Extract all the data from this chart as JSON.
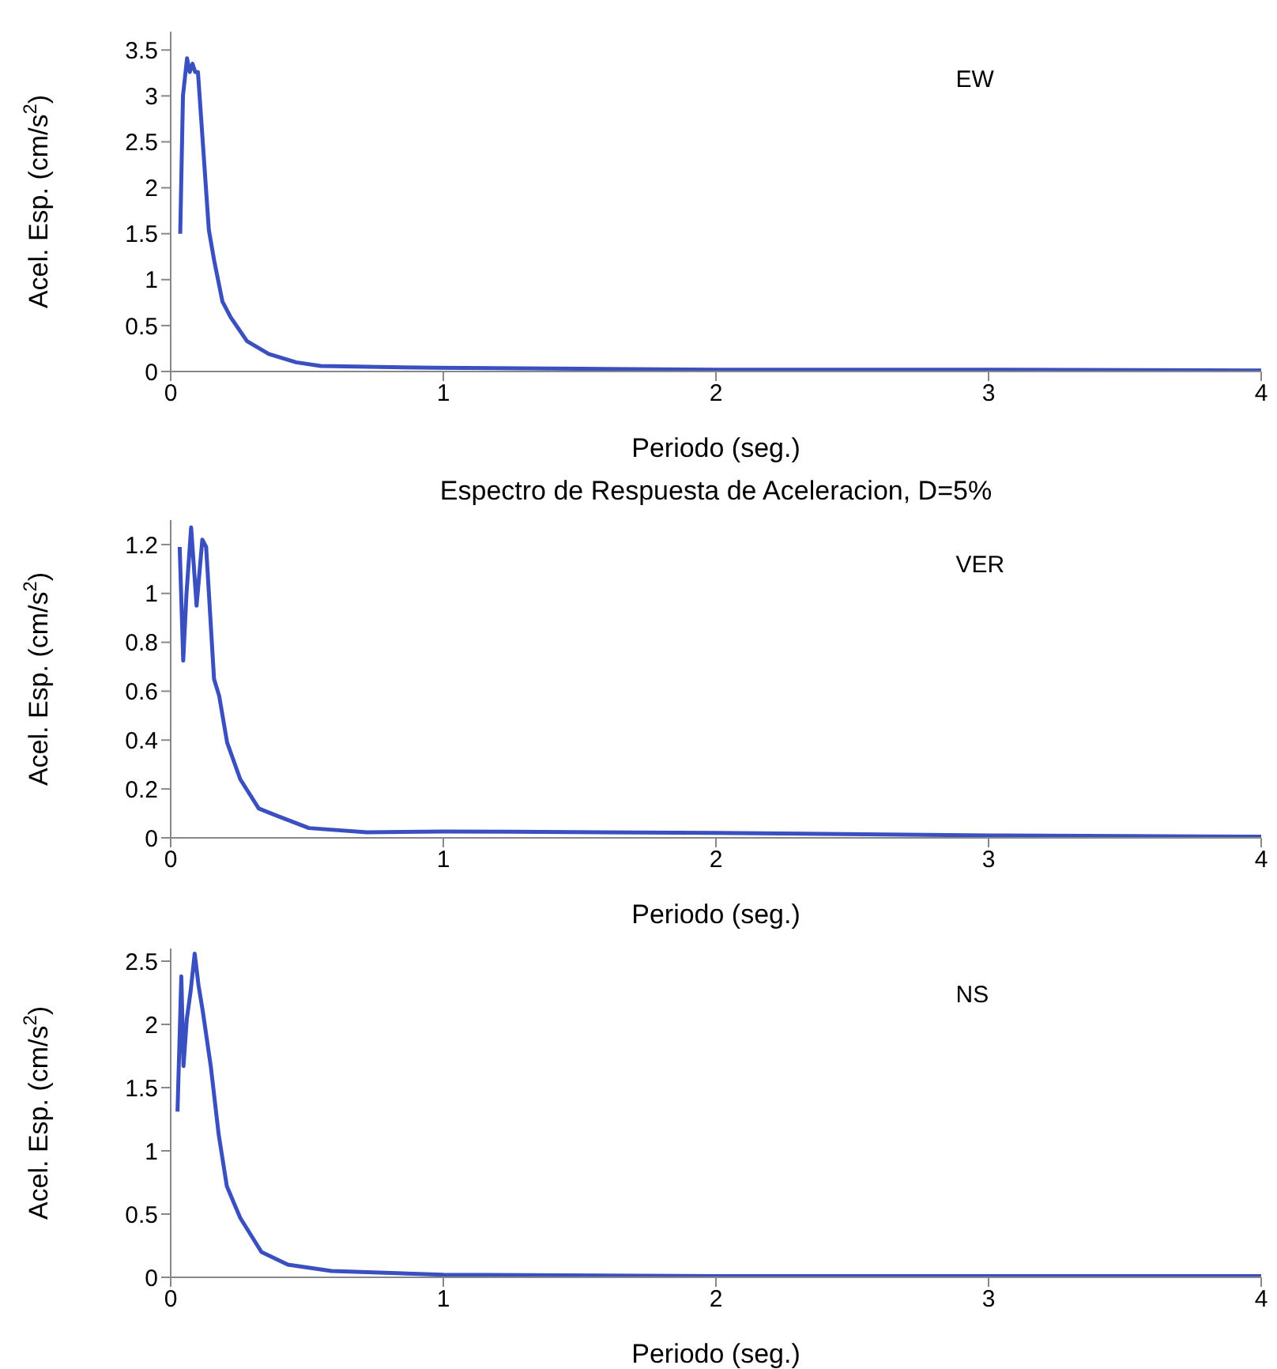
{
  "chart_data": [
    {
      "type": "line",
      "xlabel": "Periodo (seg.)",
      "ylabel": "Acel. Esp. (cm/s$^{2}$)",
      "annotations": [
        "EW"
      ],
      "xlim": [
        0,
        4
      ],
      "xticks": [
        0,
        1,
        2,
        3,
        4
      ],
      "ylim": [
        0,
        3.7
      ],
      "yticks": [
        0,
        0.5,
        1,
        1.5,
        2,
        2.5,
        3,
        3.5
      ],
      "series": [
        {
          "color": "#3a4fc0",
          "x": [
            0.035,
            0.045,
            0.06,
            0.07,
            0.08,
            0.09,
            0.1,
            0.12,
            0.14,
            0.16,
            0.19,
            0.22,
            0.28,
            0.36,
            0.46,
            0.55,
            0.97,
            1.5,
            2,
            3,
            4
          ],
          "values": [
            1.5,
            3.0,
            3.41,
            3.26,
            3.35,
            3.26,
            3.26,
            2.4,
            1.54,
            1.2,
            0.76,
            0.59,
            0.33,
            0.19,
            0.1,
            0.06,
            0.04,
            0.03,
            0.02,
            0.02,
            0.01
          ]
        }
      ]
    },
    {
      "type": "line",
      "title": "Espectro de Respuesta de Aceleracion, D=5%",
      "xlabel": "Periodo (seg.)",
      "ylabel": "Acel. Esp. (cm/s$^{2}$)",
      "annotations": [
        "VER"
      ],
      "xlim": [
        0,
        4
      ],
      "xticks": [
        0,
        1,
        2,
        3,
        4
      ],
      "ylim": [
        0,
        1.3
      ],
      "yticks": [
        0,
        0.2,
        0.4,
        0.6,
        0.8,
        1,
        1.2
      ],
      "series": [
        {
          "color": "#3a4fc0",
          "x": [
            0.033,
            0.046,
            0.058,
            0.075,
            0.095,
            0.116,
            0.13,
            0.145,
            0.159,
            0.178,
            0.207,
            0.255,
            0.323,
            0.39,
            0.507,
            0.72,
            1,
            1.25,
            2,
            3,
            4
          ],
          "values": [
            1.19,
            0.725,
            1.0,
            1.27,
            0.95,
            1.22,
            1.19,
            0.91,
            0.65,
            0.58,
            0.39,
            0.24,
            0.12,
            0.09,
            0.04,
            0.023,
            0.026,
            0.025,
            0.02,
            0.01,
            0.005
          ]
        }
      ]
    },
    {
      "type": "line",
      "xlabel": "Periodo (seg.)",
      "ylabel": "Acel. Esp. (cm/s$^{2}$)",
      "annotations": [
        "NS"
      ],
      "xlim": [
        0,
        4
      ],
      "xticks": [
        0,
        1,
        2,
        3,
        4
      ],
      "ylim": [
        0,
        2.6
      ],
      "yticks": [
        0,
        0.5,
        1,
        1.5,
        2,
        2.5
      ],
      "series": [
        {
          "color": "#3a4fc0",
          "x": [
            0.025,
            0.039,
            0.047,
            0.059,
            0.073,
            0.088,
            0.102,
            0.118,
            0.147,
            0.176,
            0.206,
            0.255,
            0.333,
            0.43,
            0.59,
            1,
            2,
            3,
            4
          ],
          "values": [
            1.31,
            2.38,
            1.67,
            2.04,
            2.26,
            2.56,
            2.31,
            2.1,
            1.67,
            1.13,
            0.72,
            0.47,
            0.2,
            0.1,
            0.05,
            0.02,
            0.01,
            0.01,
            0.01
          ]
        }
      ]
    }
  ]
}
